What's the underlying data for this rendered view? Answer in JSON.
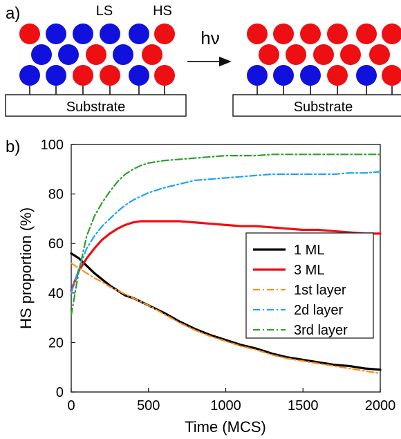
{
  "panel_a": {
    "label": "a)",
    "ls_label": "LS",
    "hs_label": "HS",
    "arrow_label": "hν",
    "substrate_label": "Substrate",
    "colors": {
      "ls": "#1111dd",
      "hs": "#ee0f13",
      "substrate_fill": "#ffffff",
      "stroke": "#111111"
    },
    "before": {
      "rows": [
        [
          "HS",
          "LS",
          "LS",
          "LS",
          "LS",
          "HS"
        ],
        [
          "LS",
          "LS",
          "HS",
          "LS",
          "HS"
        ],
        [
          "LS",
          "LS",
          "HS",
          "HS",
          "LS",
          "HS"
        ]
      ]
    },
    "after": {
      "rows": [
        [
          "HS",
          "HS",
          "HS",
          "HS",
          "HS",
          "HS"
        ],
        [
          "HS",
          "HS",
          "HS",
          "HS",
          "HS"
        ],
        [
          "LS",
          "LS",
          "LS",
          "HS",
          "LS",
          "HS"
        ]
      ]
    }
  },
  "panel_b": {
    "label": "b)"
  },
  "chart_data": {
    "type": "line",
    "title": "",
    "xlabel": "Time (MCS)",
    "ylabel": "HS proportion (%)",
    "xlim": [
      0,
      2000
    ],
    "ylim": [
      0,
      100
    ],
    "xticks": [
      0,
      500,
      1000,
      1500,
      2000
    ],
    "yticks": [
      0,
      20,
      40,
      60,
      80,
      100
    ],
    "grid": false,
    "legend_position": "bottom-right",
    "series": [
      {
        "name": "1 ML",
        "color": "#000000",
        "style": "solid",
        "x": [
          0,
          50,
          100,
          150,
          200,
          250,
          300,
          350,
          400,
          450,
          500,
          600,
          700,
          800,
          900,
          1000,
          1100,
          1200,
          1300,
          1400,
          1500,
          1600,
          1700,
          1800,
          1900,
          2000
        ],
        "y": [
          56,
          54,
          51,
          48,
          45.5,
          43,
          41,
          39,
          38,
          36.5,
          35,
          32,
          28.5,
          25.5,
          23,
          21,
          19,
          17.5,
          15.5,
          14,
          13,
          12,
          11,
          10.5,
          9.5,
          9
        ]
      },
      {
        "name": "3 ML",
        "color": "#ee0f13",
        "style": "solid",
        "x": [
          0,
          50,
          100,
          150,
          200,
          250,
          300,
          350,
          400,
          450,
          500,
          600,
          700,
          800,
          900,
          1000,
          1100,
          1200,
          1300,
          1400,
          1500,
          1600,
          1700,
          1800,
          1900,
          2000
        ],
        "y": [
          41,
          49,
          54,
          58,
          61.5,
          64,
          66,
          67.5,
          68.5,
          69,
          69,
          69,
          69,
          68.5,
          68,
          67.5,
          67,
          67,
          66.5,
          66,
          65.5,
          65.5,
          65,
          64.5,
          64,
          64
        ]
      },
      {
        "name": "1st layer",
        "color": "#ff8c1a",
        "style": "dashdot",
        "x": [
          0,
          50,
          100,
          150,
          200,
          250,
          300,
          350,
          400,
          450,
          500,
          600,
          700,
          800,
          900,
          1000,
          1100,
          1200,
          1300,
          1400,
          1500,
          1600,
          1700,
          1800,
          1900,
          2000
        ],
        "y": [
          52,
          50,
          48,
          46,
          44.5,
          42.5,
          41,
          39.5,
          38,
          36.5,
          35,
          31.5,
          28,
          25,
          22.5,
          20.5,
          18.5,
          17,
          15,
          13.5,
          12.5,
          11.5,
          10.5,
          9.5,
          8.5,
          7.5
        ]
      },
      {
        "name": "2d layer",
        "color": "#1aa3ff",
        "style": "dashdot",
        "x": [
          0,
          50,
          100,
          150,
          200,
          250,
          300,
          350,
          400,
          450,
          500,
          600,
          700,
          800,
          900,
          1000,
          1100,
          1200,
          1300,
          1400,
          1500,
          1600,
          1700,
          1800,
          1900,
          2000
        ],
        "y": [
          40,
          50,
          58,
          63,
          67,
          70,
          73,
          75.5,
          77.5,
          79,
          80.5,
          82.5,
          84,
          85.5,
          86,
          86.5,
          87,
          87.5,
          88,
          88,
          88,
          88,
          88,
          88.5,
          88.5,
          89
        ]
      },
      {
        "name": "3rd layer",
        "color": "#2ca02c",
        "style": "dashdot",
        "x": [
          0,
          50,
          100,
          150,
          200,
          250,
          300,
          350,
          400,
          450,
          500,
          600,
          700,
          800,
          900,
          1000,
          1100,
          1200,
          1300,
          1400,
          1500,
          1600,
          1700,
          1800,
          1900,
          2000
        ],
        "y": [
          31,
          49,
          63,
          71,
          76.5,
          81,
          85,
          88,
          90,
          91.5,
          92.5,
          93.5,
          94,
          94.5,
          95,
          95.5,
          95.5,
          95.5,
          96,
          96,
          96,
          96,
          96,
          96,
          96,
          96
        ]
      }
    ]
  }
}
